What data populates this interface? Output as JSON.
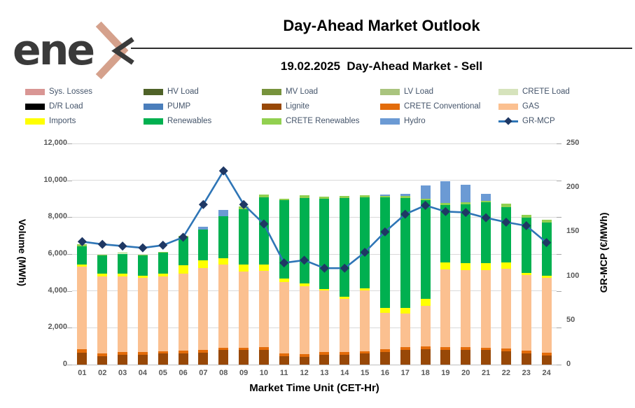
{
  "header": {
    "logo_text": "ene",
    "title": "Day-Ahead Market Outlook",
    "subtitle": "19.02.2025  Day-Ahead Market - Sell"
  },
  "colors": {
    "sys_losses": "#d99694",
    "hv_load": "#4f6228",
    "mv_load": "#77933c",
    "lv_load": "#a9c47e",
    "crete_load": "#d6e3bc",
    "dr_load": "#000000",
    "pump": "#4a7ebb",
    "lignite": "#984807",
    "crete_conventional": "#e36c0a",
    "gas": "#fbc090",
    "imports": "#ffff00",
    "renewables": "#00b050",
    "crete_renewables": "#92d050",
    "hydro": "#6b9ad4",
    "mcp_line": "#2e75b6",
    "mcp_marker": "#1f3864",
    "grid": "#d9d9d9",
    "tick_text": "#595959",
    "legend_text": "#44546a"
  },
  "legend": {
    "items": [
      {
        "label": "Sys. Losses",
        "color": "#d99694",
        "type": "box"
      },
      {
        "label": "HV Load",
        "color": "#4f6228",
        "type": "box"
      },
      {
        "label": "MV Load",
        "color": "#77933c",
        "type": "box"
      },
      {
        "label": "LV Load",
        "color": "#a9c47e",
        "type": "box"
      },
      {
        "label": "CRETE Load",
        "color": "#d6e3bc",
        "type": "box"
      },
      {
        "label": "D/R Load",
        "color": "#000000",
        "type": "box"
      },
      {
        "label": "PUMP",
        "color": "#4a7ebb",
        "type": "box"
      },
      {
        "label": "Lignite",
        "color": "#984807",
        "type": "box"
      },
      {
        "label": "CRETE Conventional",
        "color": "#e36c0a",
        "type": "box"
      },
      {
        "label": "GAS",
        "color": "#fbc090",
        "type": "box"
      },
      {
        "label": "Imports",
        "color": "#ffff00",
        "type": "box"
      },
      {
        "label": "Renewables",
        "color": "#00b050",
        "type": "box"
      },
      {
        "label": "CRETE Renewables",
        "color": "#92d050",
        "type": "box"
      },
      {
        "label": "Hydro",
        "color": "#6b9ad4",
        "type": "box"
      },
      {
        "label": "GR-MCP",
        "color": "#2e75b6",
        "type": "line"
      }
    ]
  },
  "chart_data": {
    "type": "bar",
    "subtype": "stacked-bar-with-line",
    "title": "19.02.2025 Day-Ahead Market - Sell",
    "xlabel": "Market Time Unit (CET-Hr)",
    "ylabel_left": "Volume (MWh)",
    "ylabel_right": "GR-MCP (€/MWh)",
    "grid": true,
    "legend_position": "top",
    "categories": [
      "01",
      "02",
      "03",
      "04",
      "05",
      "06",
      "07",
      "08",
      "09",
      "10",
      "11",
      "12",
      "13",
      "14",
      "15",
      "16",
      "17",
      "18",
      "19",
      "20",
      "21",
      "22",
      "23",
      "24"
    ],
    "y_left": {
      "min": 0,
      "max": 12000,
      "tick_step": 2000,
      "tick_labels": [
        "0",
        "2,000",
        "4,000",
        "6,000",
        "8,000",
        "10,000",
        "12,000"
      ]
    },
    "y_right": {
      "min": 0,
      "max": 250,
      "tick_step": 50,
      "tick_labels": [
        "0",
        "50",
        "100",
        "150",
        "200",
        "250"
      ]
    },
    "series": [
      {
        "name": "Lignite",
        "color": "#984807",
        "values": [
          650,
          440,
          520,
          520,
          590,
          590,
          650,
          780,
          780,
          815,
          460,
          435,
          520,
          520,
          590,
          690,
          815,
          840,
          815,
          815,
          780,
          740,
          615,
          485
        ]
      },
      {
        "name": "CRETE Conventional",
        "color": "#e36c0a",
        "values": [
          190,
          150,
          150,
          150,
          150,
          160,
          150,
          120,
          150,
          150,
          150,
          150,
          150,
          150,
          150,
          150,
          150,
          150,
          150,
          150,
          150,
          150,
          150,
          150
        ]
      },
      {
        "name": "GAS",
        "color": "#fbc090",
        "values": [
          4460,
          4190,
          4100,
          4050,
          4050,
          4200,
          4450,
          4520,
          4110,
          4125,
          3880,
          3675,
          3350,
          2905,
          3295,
          1980,
          1790,
          2205,
          4190,
          4150,
          4190,
          4330,
          4100,
          4075
        ]
      },
      {
        "name": "Imports",
        "color": "#ffff00",
        "values": [
          120,
          150,
          150,
          120,
          150,
          430,
          420,
          370,
          380,
          355,
          200,
          150,
          100,
          100,
          120,
          250,
          315,
          380,
          380,
          380,
          400,
          315,
          100,
          100
        ]
      },
      {
        "name": "Renewables",
        "color": "#00b050",
        "values": [
          1000,
          980,
          1100,
          1080,
          1120,
          1540,
          1650,
          2270,
          3000,
          3640,
          4235,
          4635,
          4890,
          5365,
          4925,
          6000,
          5980,
          5335,
          3125,
          3205,
          3285,
          3010,
          3015,
          2910
        ]
      },
      {
        "name": "CRETE Renewables",
        "color": "#92d050",
        "values": [
          100,
          70,
          60,
          60,
          60,
          70,
          0,
          0,
          150,
          130,
          60,
          130,
          100,
          100,
          100,
          80,
          85,
          80,
          100,
          100,
          80,
          190,
          150,
          130
        ]
      },
      {
        "name": "Hydro",
        "color": "#6b9ad4",
        "values": [
          0,
          0,
          0,
          0,
          0,
          0,
          150,
          340,
          0,
          0,
          0,
          0,
          0,
          0,
          0,
          65,
          125,
          730,
          1175,
          970,
          380,
          0,
          0,
          0
        ]
      }
    ],
    "line_series": {
      "name": "GR-MCP",
      "axis": "right",
      "color": "#2e75b6",
      "marker": "diamond",
      "marker_color": "#1f3864",
      "values": [
        139,
        136,
        134,
        132,
        135,
        144,
        181,
        219,
        181,
        159,
        115,
        118,
        109,
        109,
        127,
        150,
        170,
        180,
        173,
        172,
        166,
        161,
        157,
        138
      ]
    }
  }
}
